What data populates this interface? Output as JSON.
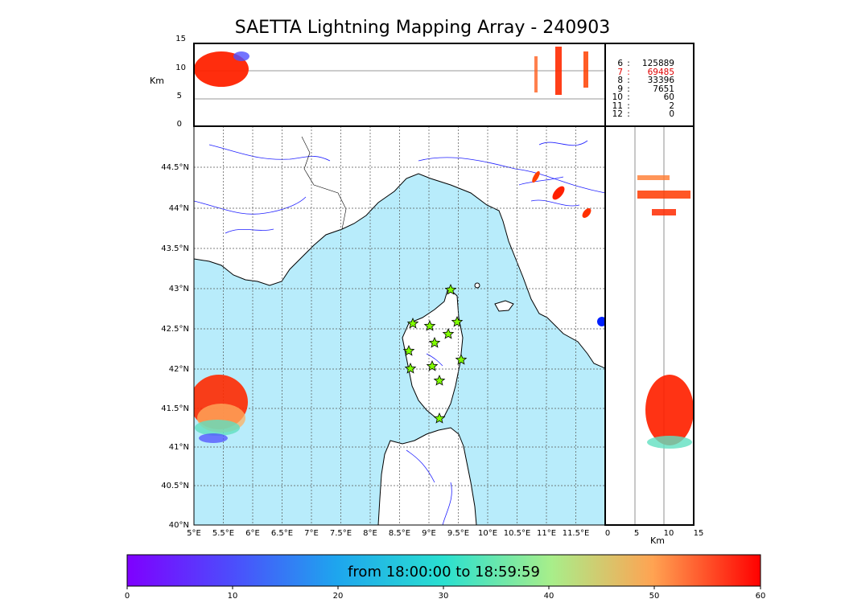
{
  "title": "SAETTA Lightning Mapping Array - 240903",
  "colorbar": {
    "label": "from 18:00:00 to 18:59:59",
    "ticks": [
      "0",
      "10",
      "20",
      "30",
      "40",
      "50",
      "60"
    ]
  },
  "axes": {
    "lon_ticks": [
      "5°E",
      "5.5°E",
      "6°E",
      "6.5°E",
      "7°E",
      "7.5°E",
      "8°E",
      "8.5°E",
      "9°E",
      "9.5°E",
      "10°E",
      "10.5°E",
      "11°E",
      "11.5°E"
    ],
    "lat_ticks": [
      "44.5°N",
      "44°N",
      "43.5°N",
      "43°N",
      "42.5°N",
      "42°N",
      "41.5°N",
      "41°N",
      "40.5°N",
      "40°N"
    ],
    "alt_ticks": [
      "15",
      "10",
      "5",
      "0"
    ],
    "alt_label": "Km",
    "side_ticks": [
      "0",
      "5",
      "10",
      "15"
    ],
    "side_label": "Km"
  },
  "stats": [
    {
      "label": "6",
      "value": "125889",
      "color": "#000000"
    },
    {
      "label": "7",
      "value": "69485",
      "color": "#e00000"
    },
    {
      "label": "8",
      "value": "33396",
      "color": "#000000"
    },
    {
      "label": "9",
      "value": "7651",
      "color": "#000000"
    },
    {
      "label": "10",
      "value": "60",
      "color": "#000000"
    },
    {
      "label": "11",
      "value": "2",
      "color": "#000000"
    },
    {
      "label": "12",
      "value": "0",
      "color": "#000000"
    }
  ],
  "colors": {
    "sea": "#b8ecfb",
    "land": "#ffffff",
    "station": "#80ff00"
  }
}
